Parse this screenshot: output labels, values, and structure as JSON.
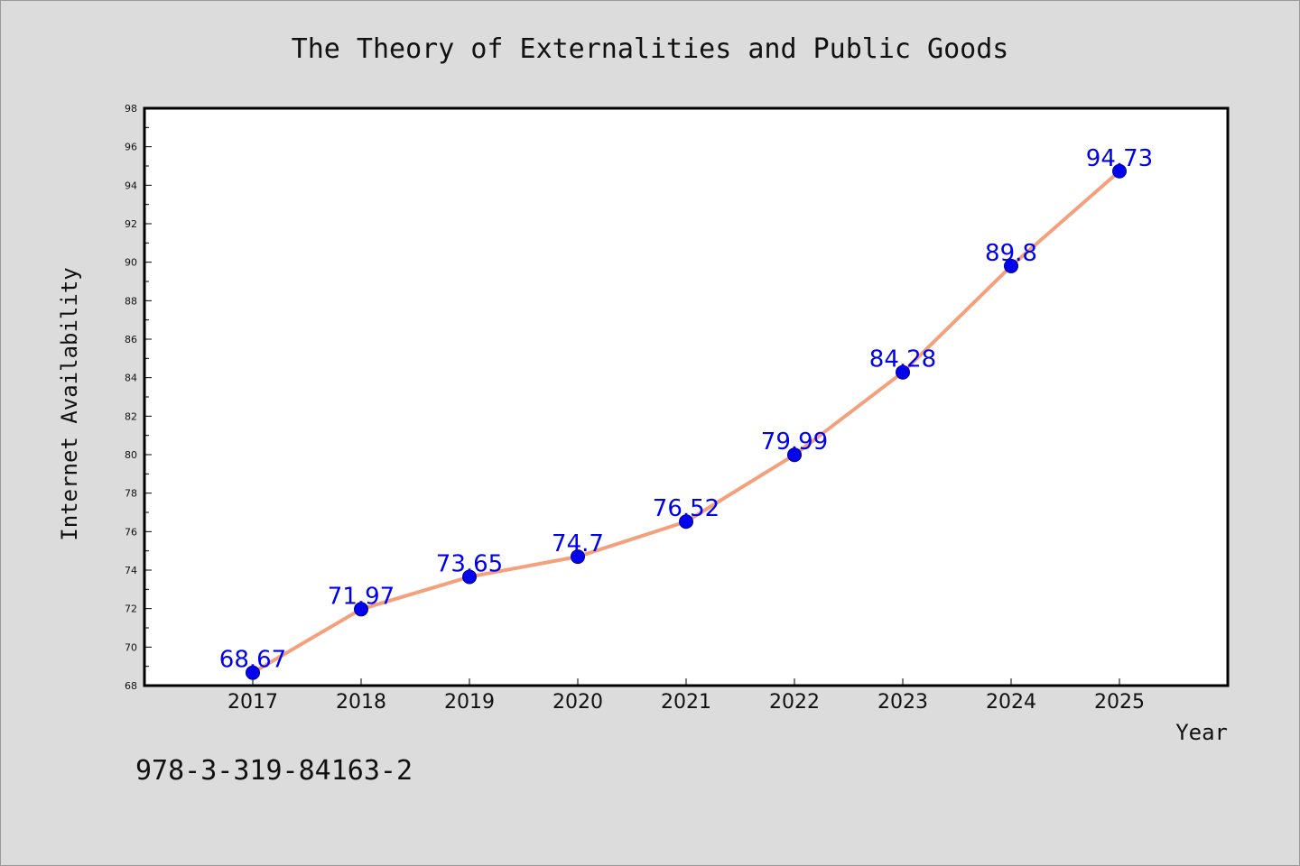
{
  "chart_data": {
    "type": "line",
    "title": "The Theory of Externalities and Public Goods",
    "xlabel": "Year",
    "ylabel": "Internet Availability",
    "categories": [
      "2017",
      "2018",
      "2019",
      "2020",
      "2021",
      "2022",
      "2023",
      "2024",
      "2025"
    ],
    "series": [
      {
        "values": [
          68.67,
          71.97,
          73.65,
          74.7,
          76.52,
          79.99,
          84.28,
          89.8,
          94.73
        ],
        "labels": [
          "68.67",
          "71.97",
          "73.65",
          "74.7",
          "76.52",
          "79.99",
          "84.28",
          "89.8",
          "94.73"
        ]
      }
    ],
    "ylim": [
      68,
      98
    ],
    "yticks": [
      "68",
      "70",
      "72",
      "74",
      "76",
      "78",
      "80",
      "82",
      "84",
      "86",
      "88",
      "90",
      "92",
      "94",
      "96",
      "98"
    ],
    "grid": false,
    "colors": {
      "line": "#f4a07c",
      "marker": "#0000ee",
      "label": "#0000ee"
    }
  },
  "footer": {
    "isbn": "978-3-319-84163-2"
  }
}
